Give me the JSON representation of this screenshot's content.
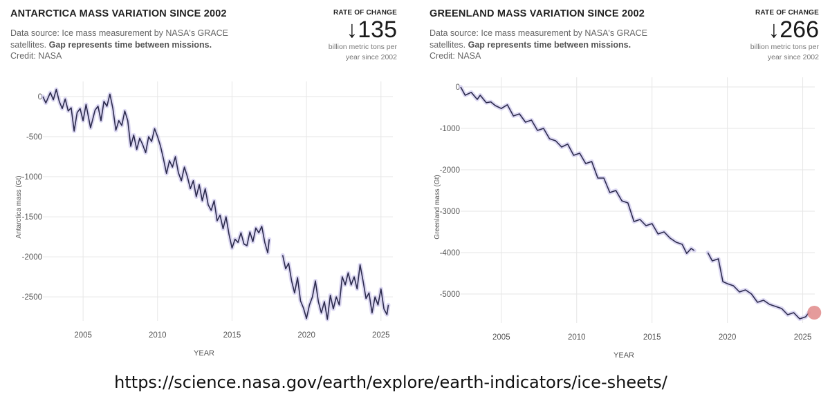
{
  "panels": [
    {
      "title": "ANTARCTICA MASS VARIATION SINCE 2002",
      "source_text": "Data source: Ice mass measurement by NASA's GRACE satellites.",
      "source_bold": "Gap represents time between missions.",
      "credit": "Credit: NASA",
      "rate_label": "RATE OF CHANGE",
      "rate_value": "↓135",
      "rate_desc_1": "billion metric tons per",
      "rate_desc_2": "year since 2002"
    },
    {
      "title": "GREENLAND MASS VARIATION SINCE 2002",
      "source_text": "Data source: Ice mass measurement by NASA's GRACE satellites.",
      "source_bold": "Gap represents time between missions.",
      "credit": "Credit: NASA",
      "rate_label": "RATE OF CHANGE",
      "rate_value": "↓266",
      "rate_desc_1": "billion metric tons per",
      "rate_desc_2": "year since 2002"
    }
  ],
  "url": "https://science.nasa.gov/earth/explore/earth-indicators/ice-sheets/",
  "chart_data": [
    {
      "type": "line",
      "xlabel": "YEAR",
      "ylabel": "Antarctica mass (Gt)",
      "xlim": [
        2002.3,
        2025.8
      ],
      "ylim": [
        -2800,
        120
      ],
      "xticks": [
        2005,
        2010,
        2015,
        2020,
        2025
      ],
      "yticks": [
        0,
        -500,
        -1000,
        -1500,
        -2000,
        -2500
      ],
      "grid": true,
      "line_color": "#2b2a4c",
      "band_color": "#cfc9ee",
      "segments": [
        [
          [
            2002.3,
            0
          ],
          [
            2002.5,
            -80
          ],
          [
            2002.8,
            50
          ],
          [
            2003.0,
            -40
          ],
          [
            2003.2,
            90
          ],
          [
            2003.4,
            -60
          ],
          [
            2003.6,
            -150
          ],
          [
            2003.8,
            -30
          ],
          [
            2004.0,
            -180
          ],
          [
            2004.2,
            -140
          ],
          [
            2004.4,
            -430
          ],
          [
            2004.6,
            -200
          ],
          [
            2004.8,
            -150
          ],
          [
            2005.0,
            -300
          ],
          [
            2005.2,
            -100
          ],
          [
            2005.5,
            -390
          ],
          [
            2005.8,
            -170
          ],
          [
            2006.0,
            -120
          ],
          [
            2006.2,
            -300
          ],
          [
            2006.4,
            -60
          ],
          [
            2006.6,
            -120
          ],
          [
            2006.8,
            30
          ],
          [
            2007.0,
            -150
          ],
          [
            2007.2,
            -420
          ],
          [
            2007.4,
            -300
          ],
          [
            2007.6,
            -360
          ],
          [
            2007.8,
            -180
          ],
          [
            2008.0,
            -300
          ],
          [
            2008.2,
            -620
          ],
          [
            2008.4,
            -480
          ],
          [
            2008.6,
            -660
          ],
          [
            2008.8,
            -520
          ],
          [
            2009.0,
            -600
          ],
          [
            2009.2,
            -700
          ],
          [
            2009.4,
            -500
          ],
          [
            2009.6,
            -560
          ],
          [
            2009.8,
            -400
          ],
          [
            2010.0,
            -500
          ],
          [
            2010.2,
            -620
          ],
          [
            2010.4,
            -780
          ],
          [
            2010.6,
            -960
          ],
          [
            2010.8,
            -800
          ],
          [
            2011.0,
            -880
          ],
          [
            2011.2,
            -750
          ],
          [
            2011.4,
            -950
          ],
          [
            2011.6,
            -1050
          ],
          [
            2011.8,
            -880
          ],
          [
            2012.0,
            -1000
          ],
          [
            2012.2,
            -1150
          ],
          [
            2012.4,
            -1050
          ],
          [
            2012.6,
            -1250
          ],
          [
            2012.8,
            -1100
          ],
          [
            2013.0,
            -1300
          ],
          [
            2013.2,
            -1150
          ],
          [
            2013.4,
            -1350
          ],
          [
            2013.6,
            -1420
          ],
          [
            2013.8,
            -1300
          ],
          [
            2014.0,
            -1550
          ],
          [
            2014.2,
            -1480
          ],
          [
            2014.4,
            -1650
          ],
          [
            2014.6,
            -1500
          ],
          [
            2014.8,
            -1720
          ],
          [
            2015.0,
            -1890
          ],
          [
            2015.2,
            -1780
          ],
          [
            2015.4,
            -1820
          ],
          [
            2015.6,
            -1700
          ],
          [
            2015.8,
            -1840
          ],
          [
            2016.0,
            -1860
          ],
          [
            2016.2,
            -1690
          ],
          [
            2016.4,
            -1810
          ],
          [
            2016.6,
            -1640
          ],
          [
            2016.8,
            -1700
          ],
          [
            2017.0,
            -1620
          ],
          [
            2017.2,
            -1820
          ],
          [
            2017.4,
            -1950
          ],
          [
            2017.5,
            -1780
          ]
        ],
        [
          [
            2018.4,
            -1980
          ],
          [
            2018.6,
            -2150
          ],
          [
            2018.8,
            -2080
          ],
          [
            2019.0,
            -2300
          ],
          [
            2019.2,
            -2450
          ],
          [
            2019.4,
            -2260
          ],
          [
            2019.6,
            -2550
          ],
          [
            2019.8,
            -2640
          ],
          [
            2020.0,
            -2770
          ],
          [
            2020.2,
            -2600
          ],
          [
            2020.4,
            -2500
          ],
          [
            2020.6,
            -2300
          ],
          [
            2020.8,
            -2560
          ],
          [
            2021.0,
            -2700
          ],
          [
            2021.2,
            -2560
          ],
          [
            2021.4,
            -2780
          ],
          [
            2021.6,
            -2480
          ],
          [
            2021.8,
            -2650
          ],
          [
            2022.0,
            -2500
          ],
          [
            2022.2,
            -2600
          ],
          [
            2022.4,
            -2250
          ],
          [
            2022.6,
            -2350
          ],
          [
            2022.8,
            -2200
          ],
          [
            2023.0,
            -2350
          ],
          [
            2023.2,
            -2250
          ],
          [
            2023.4,
            -2400
          ],
          [
            2023.6,
            -2100
          ],
          [
            2023.8,
            -2300
          ],
          [
            2024.0,
            -2520
          ],
          [
            2024.2,
            -2450
          ],
          [
            2024.4,
            -2700
          ],
          [
            2024.6,
            -2500
          ],
          [
            2024.8,
            -2600
          ],
          [
            2025.0,
            -2400
          ],
          [
            2025.2,
            -2650
          ],
          [
            2025.4,
            -2720
          ],
          [
            2025.5,
            -2600
          ]
        ]
      ]
    },
    {
      "type": "line",
      "xlabel": "YEAR",
      "ylabel": "Greenland mass (Gt)",
      "xlim": [
        2002.3,
        2025.8
      ],
      "ylim": [
        -5700,
        100
      ],
      "xticks": [
        2005,
        2010,
        2015,
        2020,
        2025
      ],
      "yticks": [
        0,
        -1000,
        -2000,
        -3000,
        -4000,
        -5000
      ],
      "grid": true,
      "line_color": "#2b2a4c",
      "band_color": "#cfc9ee",
      "highlight_color": "#e08a8a",
      "segments": [
        [
          [
            2002.3,
            0
          ],
          [
            2002.6,
            -200
          ],
          [
            2003.0,
            -130
          ],
          [
            2003.4,
            -300
          ],
          [
            2003.6,
            -200
          ],
          [
            2004.0,
            -380
          ],
          [
            2004.3,
            -360
          ],
          [
            2004.6,
            -450
          ],
          [
            2005.0,
            -520
          ],
          [
            2005.4,
            -430
          ],
          [
            2005.8,
            -700
          ],
          [
            2006.2,
            -650
          ],
          [
            2006.6,
            -850
          ],
          [
            2007.0,
            -800
          ],
          [
            2007.4,
            -1050
          ],
          [
            2007.8,
            -1000
          ],
          [
            2008.2,
            -1250
          ],
          [
            2008.6,
            -1300
          ],
          [
            2009.0,
            -1450
          ],
          [
            2009.4,
            -1380
          ],
          [
            2009.8,
            -1650
          ],
          [
            2010.2,
            -1600
          ],
          [
            2010.6,
            -1850
          ],
          [
            2011.0,
            -1800
          ],
          [
            2011.4,
            -2200
          ],
          [
            2011.8,
            -2200
          ],
          [
            2012.2,
            -2550
          ],
          [
            2012.6,
            -2500
          ],
          [
            2013.0,
            -2750
          ],
          [
            2013.4,
            -2800
          ],
          [
            2013.8,
            -3250
          ],
          [
            2014.2,
            -3200
          ],
          [
            2014.6,
            -3350
          ],
          [
            2015.0,
            -3300
          ],
          [
            2015.4,
            -3550
          ],
          [
            2015.8,
            -3500
          ],
          [
            2016.2,
            -3650
          ],
          [
            2016.6,
            -3750
          ],
          [
            2017.0,
            -3800
          ],
          [
            2017.3,
            -4020
          ],
          [
            2017.6,
            -3900
          ],
          [
            2017.8,
            -3950
          ]
        ],
        [
          [
            2018.7,
            -4000
          ],
          [
            2019.0,
            -4200
          ],
          [
            2019.4,
            -4150
          ],
          [
            2019.7,
            -4700
          ],
          [
            2020.0,
            -4750
          ],
          [
            2020.4,
            -4800
          ],
          [
            2020.8,
            -4950
          ],
          [
            2021.2,
            -4900
          ],
          [
            2021.6,
            -5000
          ],
          [
            2022.0,
            -5200
          ],
          [
            2022.4,
            -5150
          ],
          [
            2022.8,
            -5250
          ],
          [
            2023.2,
            -5300
          ],
          [
            2023.6,
            -5350
          ],
          [
            2024.0,
            -5500
          ],
          [
            2024.4,
            -5450
          ],
          [
            2024.8,
            -5600
          ],
          [
            2025.2,
            -5550
          ],
          [
            2025.4,
            -5450
          ]
        ]
      ],
      "highlight_point": [
        2025.4,
        -5450
      ]
    }
  ]
}
